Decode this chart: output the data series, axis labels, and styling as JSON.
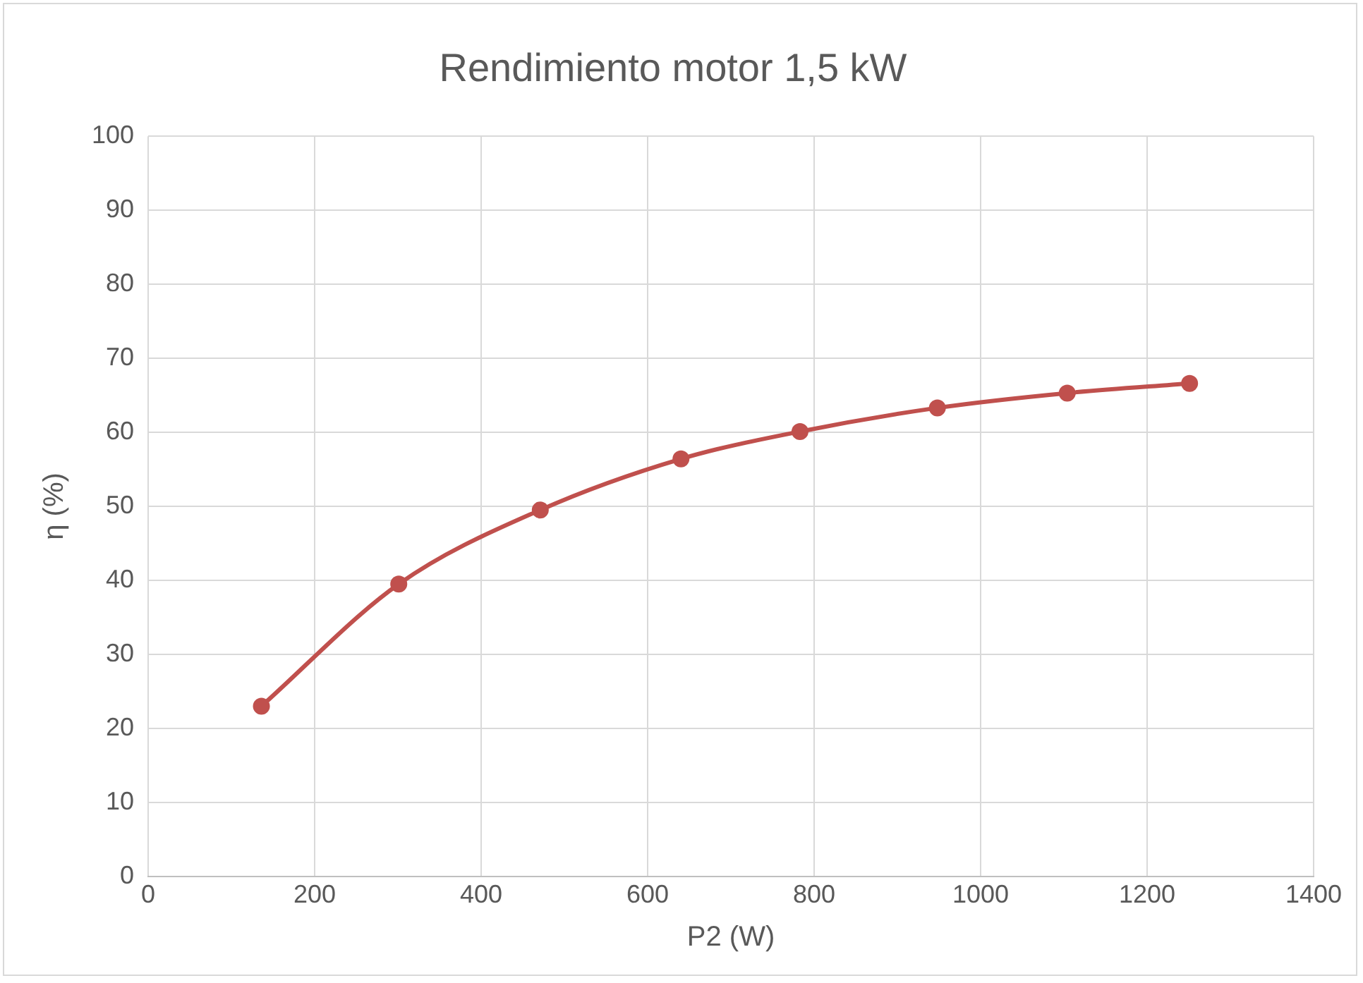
{
  "chart_data": {
    "type": "line",
    "title": "Rendimiento motor 1,5 kW",
    "xlabel": "P2 (W)",
    "ylabel": "η (%)",
    "series": [
      {
        "color": "#c0504d",
        "x": [
          136,
          301,
          471,
          640,
          783,
          948,
          1104,
          1251
        ],
        "values": [
          23.0,
          39.5,
          49.5,
          56.4,
          60.1,
          63.3,
          65.3,
          66.6
        ]
      }
    ],
    "xlim": [
      0,
      1400
    ],
    "xticks": [
      0,
      200,
      400,
      600,
      800,
      1000,
      1200,
      1400
    ],
    "ylim": [
      0,
      100
    ],
    "yticks": [
      0,
      10,
      20,
      30,
      40,
      50,
      60,
      70,
      80,
      90,
      100
    ],
    "grid": true,
    "legend": false,
    "marker": "circle",
    "line_style": "solid"
  }
}
